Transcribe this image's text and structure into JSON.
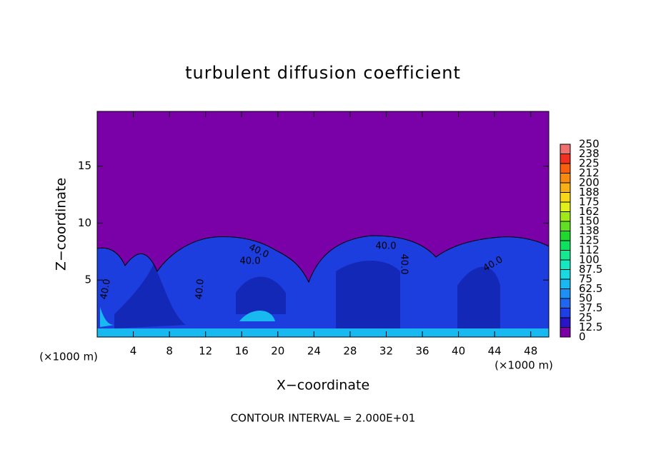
{
  "chart_data": {
    "type": "contour",
    "title": "turbulent diffusion coefficient",
    "x_label": "X−coordinate",
    "y_label": "Z−coordinate",
    "x_unit": "(×1000 m)",
    "footer": "CONTOUR INTERVAL = 2.000E+01",
    "xlim": [
      0,
      50
    ],
    "ylim": [
      0,
      19.8
    ],
    "xticks": [
      4,
      8,
      12,
      16,
      20,
      24,
      28,
      32,
      36,
      40,
      44,
      48
    ],
    "yticks": [
      5,
      10,
      15
    ],
    "contour_labels": [
      "40.0",
      "40.0",
      "40.0",
      "40.0",
      "40.0",
      "40.0",
      "40.0"
    ],
    "colorbar": {
      "ticks": [
        0,
        12.5,
        25,
        37.5,
        50,
        62.5,
        75,
        87.5,
        100,
        {
          "value": 112.5,
          "label": "112"
        },
        125,
        {
          "value": 137.5,
          "label": "138"
        },
        150,
        {
          "value": 162.5,
          "label": "162"
        },
        175,
        {
          "value": 187.5,
          "label": "188"
        },
        200,
        {
          "value": 212.5,
          "label": "212"
        },
        225,
        {
          "value": 237.5,
          "label": "238"
        },
        250
      ],
      "colors": [
        "#7a00a8",
        "#2a14c8",
        "#1e3ee6",
        "#1f66f0",
        "#1c90f4",
        "#18b8f0",
        "#1ad8e0",
        "#14e8c0",
        "#14e890",
        "#10e060",
        "#20d830",
        "#60e020",
        "#a0e818",
        "#e0f018",
        "#f8d818",
        "#f8b014",
        "#f88a10",
        "#f86010",
        "#f03020",
        "#f07070"
      ]
    }
  }
}
